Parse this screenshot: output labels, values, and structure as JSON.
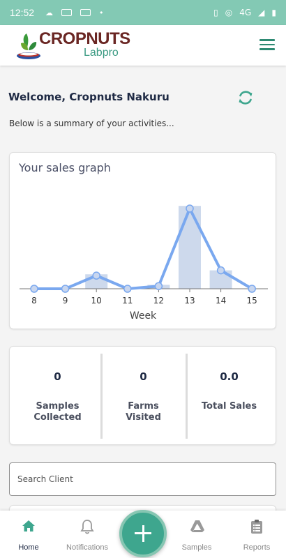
{
  "status_bar": {
    "time": "12:52",
    "network": "4G"
  },
  "header": {
    "brand": "CROPNUTS",
    "sub_brand": "Labpro"
  },
  "main": {
    "welcome": "Welcome,  Cropnuts Nakuru",
    "summary": "Below is a summary of your activities...",
    "search_placeholder": "Search Client"
  },
  "chart_data": {
    "type": "line",
    "title": "Your sales graph",
    "xlabel": "Week",
    "ylabel": "",
    "categories": [
      "8",
      "9",
      "10",
      "11",
      "12",
      "13",
      "14",
      "15"
    ],
    "series": [
      {
        "name": "",
        "kind": "bar",
        "values": [
          0,
          0,
          1.1,
          0,
          0.3,
          6.3,
          1.4,
          0
        ]
      },
      {
        "name": "",
        "kind": "line",
        "values": [
          0,
          0,
          1.0,
          0,
          0.2,
          6.1,
          1.4,
          0
        ]
      }
    ],
    "ylim": [
      0,
      7
    ],
    "grid": false,
    "colors": {
      "bar": "#cdd9ec",
      "line": "#7aa8ef",
      "point_fill": "#c8d6ef",
      "point_stroke": "#7aa8ef"
    }
  },
  "stats": [
    {
      "value": "0",
      "label": "Samples Collected"
    },
    {
      "value": "0",
      "label": "Farms Visited"
    },
    {
      "value": "0.0",
      "label": "Total Sales"
    }
  ],
  "bottom_nav": {
    "items": [
      {
        "label": "Home",
        "icon": "home-icon"
      },
      {
        "label": "Notifications",
        "icon": "bell-icon"
      },
      {
        "label": "Samples",
        "icon": "samples-icon"
      },
      {
        "label": "Reports",
        "icon": "clipboard-icon"
      }
    ],
    "fab_icon": "plus-icon"
  },
  "colors": {
    "status_bar": "#83c9b4",
    "accent": "#3ea68e",
    "brand": "#6a2623"
  }
}
